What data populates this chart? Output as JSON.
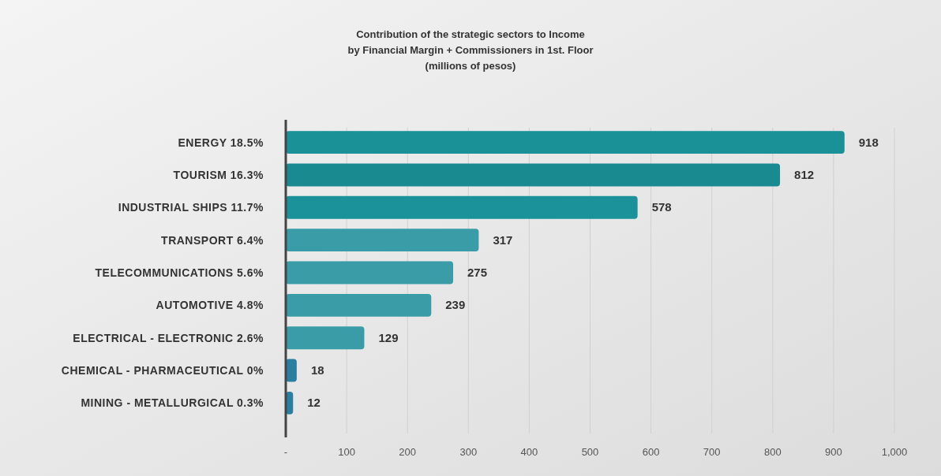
{
  "chart_data": {
    "type": "bar",
    "orientation": "horizontal",
    "title": "Contribution of the strategic sectors to Income\nby Financial Margin + Commissioners in 1st. Floor\n(millions of pesos)",
    "categories": [
      "ENERGY 18.5%",
      "TOURISM 16.3%",
      "INDUSTRIAL SHIPS 11.7%",
      "TRANSPORT 6.4%",
      "TELECOMMUNICATIONS 5.6%",
      "AUTOMOTIVE 4.8%",
      "ELECTRICAL - ELECTRONIC 2.6%",
      "CHEMICAL - PHARMACEUTICAL 0%",
      "MINING - METALLURGICAL 0.3%"
    ],
    "values": [
      918,
      812,
      578,
      317,
      275,
      239,
      129,
      18,
      12
    ],
    "colors": [
      "#1a9097",
      "#1a8a91",
      "#1b9299",
      "#3a9ca6",
      "#3a9ca6",
      "#3a9ca6",
      "#3a9ca6",
      "#2a7fa0",
      "#2a7fa0"
    ],
    "xlim": [
      0,
      1000
    ],
    "xticks": [
      {
        "value": 0,
        "label": "-"
      },
      100,
      200,
      300,
      400,
      500,
      600,
      700,
      800,
      900,
      {
        "value": 1000,
        "label": "1,000"
      }
    ],
    "grid": "x",
    "data_labels": true
  }
}
